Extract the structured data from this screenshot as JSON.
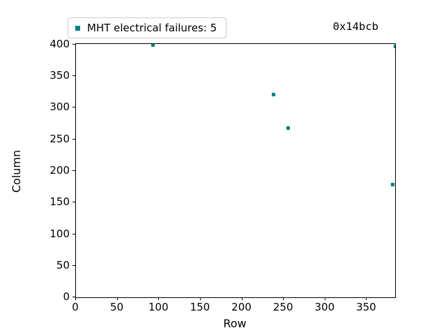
{
  "title": "0x14bcb",
  "legend": {
    "label": "MHT electrical failures: 5",
    "marker_color": "#008080"
  },
  "axes": {
    "xlabel": "Row",
    "ylabel": "Column"
  },
  "chart_data": {
    "type": "scatter",
    "title": "0x14bcb",
    "xlabel": "Row",
    "ylabel": "Column",
    "xlim": [
      0,
      384
    ],
    "ylim": [
      0,
      401
    ],
    "x_ticks": [
      0,
      50,
      100,
      150,
      200,
      250,
      300,
      350
    ],
    "y_ticks": [
      0,
      50,
      100,
      150,
      200,
      250,
      300,
      350,
      400
    ],
    "grid": false,
    "legend_position": "upper-left-outside",
    "series": [
      {
        "name": "MHT electrical failures: 5",
        "marker": "square",
        "color": "#008080",
        "points": [
          {
            "row": 93,
            "column": 399
          },
          {
            "row": 238,
            "column": 321
          },
          {
            "row": 255,
            "column": 268
          },
          {
            "row": 384,
            "column": 397
          },
          {
            "row": 381,
            "column": 178
          }
        ]
      }
    ]
  }
}
